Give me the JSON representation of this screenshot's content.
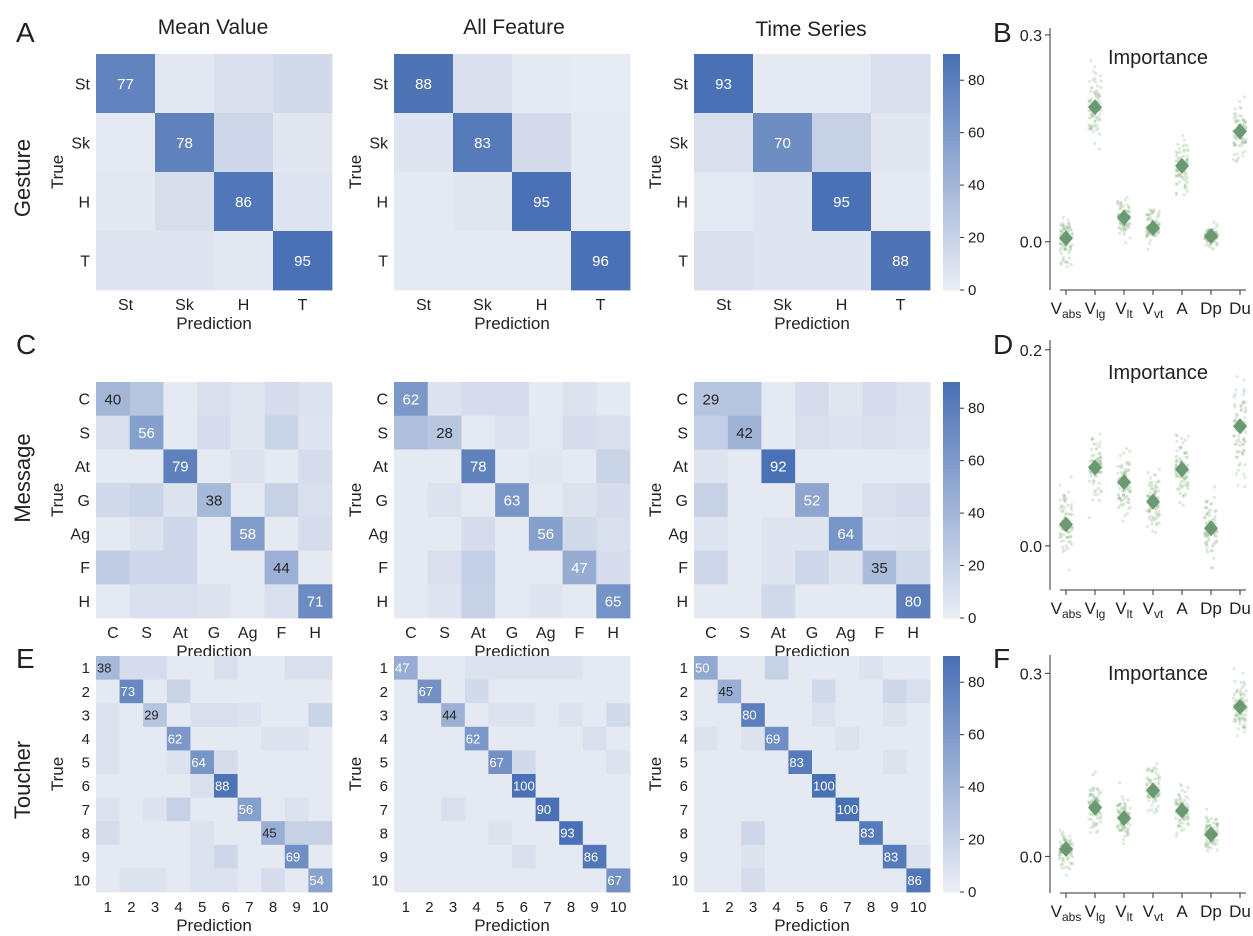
{
  "figure": {
    "panel_letters": [
      "A",
      "B",
      "C",
      "D",
      "E",
      "F"
    ],
    "column_titles": [
      "Mean Value",
      "All Feature",
      "Time Series"
    ],
    "row_titles": [
      "Gesture",
      "Message",
      "Toucher"
    ],
    "true_label": "True",
    "prediction_label": "Prediction",
    "importance_title": "Importance",
    "colorbar_ticks": [
      0,
      20,
      40,
      60,
      80
    ]
  },
  "colors": {
    "cell_low": "#eaedf4",
    "cell_high": "#4a71b5",
    "text_light": "#ffffff",
    "text_dark": "#262626",
    "strip_point": "#88b586",
    "strip_diamond": "#6b9a72",
    "axis": "#333333"
  },
  "chart_data": [
    {
      "type": "heatmap",
      "panel": "A",
      "title": "Mean Value",
      "row_title": "Gesture",
      "labels": [
        "St",
        "Sk",
        "H",
        "T"
      ],
      "xlabel": "Prediction",
      "ylabel": "True",
      "vmin": 0,
      "vmax": 90,
      "values": [
        [
          77,
          4,
          10,
          14
        ],
        [
          3,
          78,
          16,
          5
        ],
        [
          4,
          11,
          86,
          6
        ],
        [
          6,
          6,
          4,
          95
        ]
      ]
    },
    {
      "type": "heatmap",
      "panel": "A",
      "title": "All Feature",
      "labels": [
        "St",
        "Sk",
        "H",
        "T"
      ],
      "xlabel": "Prediction",
      "ylabel": "True",
      "vmin": 0,
      "vmax": 90,
      "values": [
        [
          88,
          10,
          3,
          2
        ],
        [
          6,
          83,
          13,
          3
        ],
        [
          3,
          5,
          95,
          3
        ],
        [
          3,
          3,
          3,
          96
        ]
      ]
    },
    {
      "type": "heatmap",
      "panel": "A",
      "title": "Time Series",
      "labels": [
        "St",
        "Sk",
        "H",
        "T"
      ],
      "xlabel": "Prediction",
      "ylabel": "True",
      "vmin": 0,
      "vmax": 90,
      "values": [
        [
          93,
          3,
          3,
          10
        ],
        [
          10,
          70,
          20,
          5
        ],
        [
          3,
          6,
          95,
          3
        ],
        [
          10,
          6,
          6,
          88
        ]
      ]
    },
    {
      "type": "scatter",
      "panel": "B",
      "title": "Importance",
      "categories": [
        "V_abs",
        "V_lg",
        "V_lt",
        "V_vt",
        "A",
        "Dp",
        "Du"
      ],
      "means": [
        0.005,
        0.195,
        0.035,
        0.02,
        0.11,
        0.008,
        0.16
      ],
      "spread": [
        0.03,
        0.045,
        0.025,
        0.022,
        0.035,
        0.015,
        0.035
      ],
      "yticks": [
        0.0,
        0.3
      ],
      "ylim": [
        -0.07,
        0.31
      ]
    },
    {
      "type": "heatmap",
      "panel": "C",
      "title": "Mean Value",
      "row_title": "Message",
      "labels": [
        "C",
        "S",
        "At",
        "G",
        "Ag",
        "F",
        "H"
      ],
      "xlabel": "Prediction",
      "ylabel": "True",
      "vmin": 0,
      "vmax": 90,
      "values": [
        [
          40,
          30,
          3,
          10,
          5,
          12,
          8
        ],
        [
          10,
          56,
          3,
          12,
          5,
          18,
          6
        ],
        [
          3,
          3,
          79,
          3,
          8,
          3,
          12
        ],
        [
          14,
          18,
          8,
          38,
          3,
          20,
          10
        ],
        [
          3,
          8,
          16,
          3,
          58,
          3,
          12
        ],
        [
          24,
          15,
          15,
          3,
          3,
          44,
          3
        ],
        [
          3,
          10,
          10,
          8,
          3,
          10,
          71
        ]
      ]
    },
    {
      "type": "heatmap",
      "panel": "C",
      "title": "All Feature",
      "labels": [
        "C",
        "S",
        "At",
        "G",
        "Ag",
        "F",
        "H"
      ],
      "xlabel": "Prediction",
      "ylabel": "True",
      "vmin": 0,
      "vmax": 90,
      "values": [
        [
          62,
          8,
          12,
          12,
          3,
          8,
          3
        ],
        [
          34,
          28,
          3,
          8,
          3,
          12,
          10
        ],
        [
          3,
          3,
          78,
          3,
          5,
          3,
          18
        ],
        [
          3,
          8,
          3,
          63,
          3,
          8,
          12
        ],
        [
          3,
          3,
          12,
          3,
          56,
          14,
          10
        ],
        [
          3,
          10,
          22,
          3,
          3,
          47,
          12
        ],
        [
          3,
          6,
          20,
          3,
          6,
          3,
          65
        ]
      ]
    },
    {
      "type": "heatmap",
      "panel": "C",
      "title": "Time Series",
      "labels": [
        "C",
        "S",
        "At",
        "G",
        "Ag",
        "F",
        "H"
      ],
      "xlabel": "Prediction",
      "ylabel": "True",
      "vmin": 0,
      "vmax": 90,
      "values": [
        [
          29,
          30,
          3,
          12,
          5,
          12,
          8
        ],
        [
          22,
          42,
          3,
          10,
          8,
          10,
          6
        ],
        [
          6,
          3,
          92,
          3,
          3,
          3,
          3
        ],
        [
          20,
          3,
          3,
          52,
          3,
          10,
          12
        ],
        [
          6,
          3,
          6,
          6,
          64,
          6,
          8
        ],
        [
          16,
          3,
          6,
          16,
          8,
          35,
          14
        ],
        [
          3,
          3,
          14,
          3,
          3,
          3,
          80
        ]
      ]
    },
    {
      "type": "scatter",
      "panel": "D",
      "title": "Importance",
      "categories": [
        "V_abs",
        "V_lg",
        "V_lt",
        "V_vt",
        "A",
        "Dp",
        "Du"
      ],
      "means": [
        0.022,
        0.08,
        0.065,
        0.045,
        0.078,
        0.018,
        0.122
      ],
      "spread": [
        0.03,
        0.03,
        0.03,
        0.03,
        0.03,
        0.03,
        0.04
      ],
      "yticks": [
        0.0,
        0.2
      ],
      "ylim": [
        -0.045,
        0.21
      ]
    },
    {
      "type": "heatmap",
      "panel": "E",
      "title": "Mean Value",
      "row_title": "Toucher",
      "labels": [
        "1",
        "2",
        "3",
        "4",
        "5",
        "6",
        "7",
        "8",
        "9",
        "10"
      ],
      "xlabel": "Prediction",
      "ylabel": "True",
      "vmin": 0,
      "vmax": 90,
      "values": [
        [
          38,
          12,
          12,
          3,
          3,
          10,
          3,
          3,
          10,
          10
        ],
        [
          3,
          73,
          3,
          18,
          3,
          3,
          3,
          3,
          3,
          3
        ],
        [
          8,
          3,
          29,
          3,
          10,
          10,
          8,
          3,
          3,
          18
        ],
        [
          8,
          3,
          3,
          62,
          3,
          3,
          3,
          8,
          8,
          3
        ],
        [
          8,
          3,
          3,
          8,
          64,
          12,
          3,
          3,
          3,
          3
        ],
        [
          3,
          3,
          3,
          3,
          10,
          88,
          3,
          3,
          3,
          3
        ],
        [
          8,
          3,
          8,
          20,
          3,
          3,
          56,
          3,
          8,
          3
        ],
        [
          12,
          3,
          3,
          3,
          8,
          3,
          3,
          45,
          20,
          20
        ],
        [
          3,
          3,
          3,
          3,
          8,
          16,
          3,
          3,
          69,
          3
        ],
        [
          3,
          8,
          8,
          3,
          8,
          8,
          3,
          12,
          3,
          54
        ]
      ]
    },
    {
      "type": "heatmap",
      "panel": "E",
      "title": "All Feature",
      "labels": [
        "1",
        "2",
        "3",
        "4",
        "5",
        "6",
        "7",
        "8",
        "9",
        "10"
      ],
      "xlabel": "Prediction",
      "ylabel": "True",
      "vmin": 0,
      "vmax": 90,
      "values": [
        [
          47,
          3,
          3,
          8,
          8,
          8,
          8,
          8,
          3,
          3
        ],
        [
          3,
          67,
          3,
          14,
          3,
          3,
          3,
          3,
          3,
          3
        ],
        [
          3,
          3,
          44,
          3,
          8,
          8,
          3,
          8,
          3,
          14
        ],
        [
          3,
          3,
          3,
          62,
          3,
          3,
          3,
          3,
          10,
          3
        ],
        [
          3,
          3,
          3,
          3,
          67,
          14,
          3,
          3,
          3,
          8
        ],
        [
          3,
          3,
          3,
          3,
          3,
          100,
          3,
          3,
          3,
          3
        ],
        [
          3,
          3,
          10,
          3,
          3,
          3,
          90,
          3,
          3,
          3
        ],
        [
          3,
          3,
          3,
          3,
          8,
          3,
          3,
          93,
          3,
          3
        ],
        [
          3,
          3,
          3,
          3,
          3,
          10,
          3,
          3,
          86,
          3
        ],
        [
          3,
          3,
          3,
          3,
          3,
          3,
          3,
          3,
          3,
          67
        ]
      ]
    },
    {
      "type": "heatmap",
      "panel": "E",
      "title": "Time Series",
      "labels": [
        "1",
        "2",
        "3",
        "4",
        "5",
        "6",
        "7",
        "8",
        "9",
        "10"
      ],
      "xlabel": "Prediction",
      "ylabel": "True",
      "vmin": 0,
      "vmax": 90,
      "values": [
        [
          50,
          3,
          3,
          20,
          3,
          3,
          3,
          8,
          3,
          3
        ],
        [
          3,
          45,
          3,
          3,
          3,
          14,
          3,
          3,
          16,
          10
        ],
        [
          3,
          3,
          80,
          3,
          3,
          8,
          3,
          3,
          8,
          3
        ],
        [
          8,
          3,
          8,
          69,
          3,
          3,
          8,
          3,
          3,
          3
        ],
        [
          3,
          3,
          3,
          3,
          83,
          3,
          3,
          3,
          8,
          3
        ],
        [
          3,
          3,
          3,
          3,
          3,
          100,
          3,
          3,
          3,
          3
        ],
        [
          3,
          3,
          3,
          3,
          3,
          3,
          100,
          3,
          3,
          3
        ],
        [
          3,
          3,
          16,
          3,
          3,
          3,
          3,
          83,
          3,
          3
        ],
        [
          3,
          3,
          8,
          3,
          3,
          3,
          3,
          3,
          83,
          8
        ],
        [
          3,
          3,
          12,
          3,
          3,
          3,
          3,
          3,
          3,
          86
        ]
      ]
    },
    {
      "type": "scatter",
      "panel": "F",
      "title": "Importance",
      "categories": [
        "V_abs",
        "V_lg",
        "V_lt",
        "V_vt",
        "A",
        "Dp",
        "Du"
      ],
      "means": [
        0.012,
        0.08,
        0.063,
        0.108,
        0.075,
        0.036,
        0.245
      ],
      "spread": [
        0.028,
        0.035,
        0.035,
        0.035,
        0.03,
        0.028,
        0.04
      ],
      "yticks": [
        0.0,
        0.3
      ],
      "ylim": [
        -0.06,
        0.33
      ]
    }
  ]
}
